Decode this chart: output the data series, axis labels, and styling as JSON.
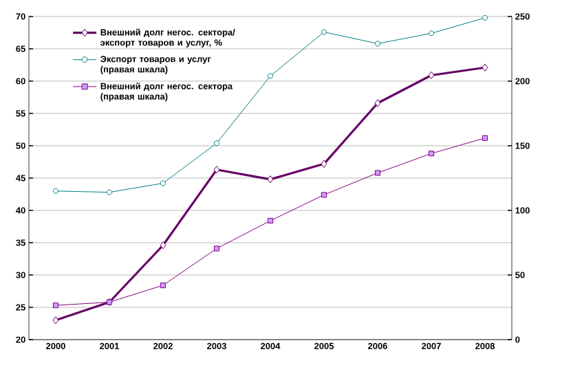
{
  "chart_data": {
    "type": "line",
    "categories": [
      "2000",
      "2001",
      "2002",
      "2003",
      "2004",
      "2005",
      "2006",
      "2007",
      "2008"
    ],
    "series": [
      {
        "name": "Внешний долг негос. сектора/ экспорт товаров и услуг, %",
        "color": "#660066",
        "marker": "diamond",
        "values": [
          23,
          25.8,
          34.6,
          46.3,
          44.8,
          47.2,
          56.6,
          60.9,
          62.1
        ]
      },
      {
        "name": "Экспорт товаров и услуг (правая шкала)",
        "color": "#008080",
        "marker": "circle",
        "axis": "y2",
        "values": [
          115,
          114,
          121,
          152,
          204,
          238,
          229,
          237,
          249
        ]
      },
      {
        "name": "Внешний долг негос. сектора (правая шкала)",
        "color": "#800080",
        "marker": "square",
        "axis": "y2",
        "values": [
          26.5,
          29,
          42,
          70.5,
          92,
          112,
          129,
          144,
          156
        ]
      }
    ],
    "ylim": [
      20,
      70
    ],
    "yticks": [
      20,
      25,
      30,
      35,
      40,
      45,
      50,
      55,
      60,
      65,
      70
    ],
    "y2lim": [
      0,
      250
    ],
    "y2ticks": [
      0,
      50,
      100,
      150,
      200,
      250
    ],
    "grid": "y",
    "legend": "top left"
  }
}
